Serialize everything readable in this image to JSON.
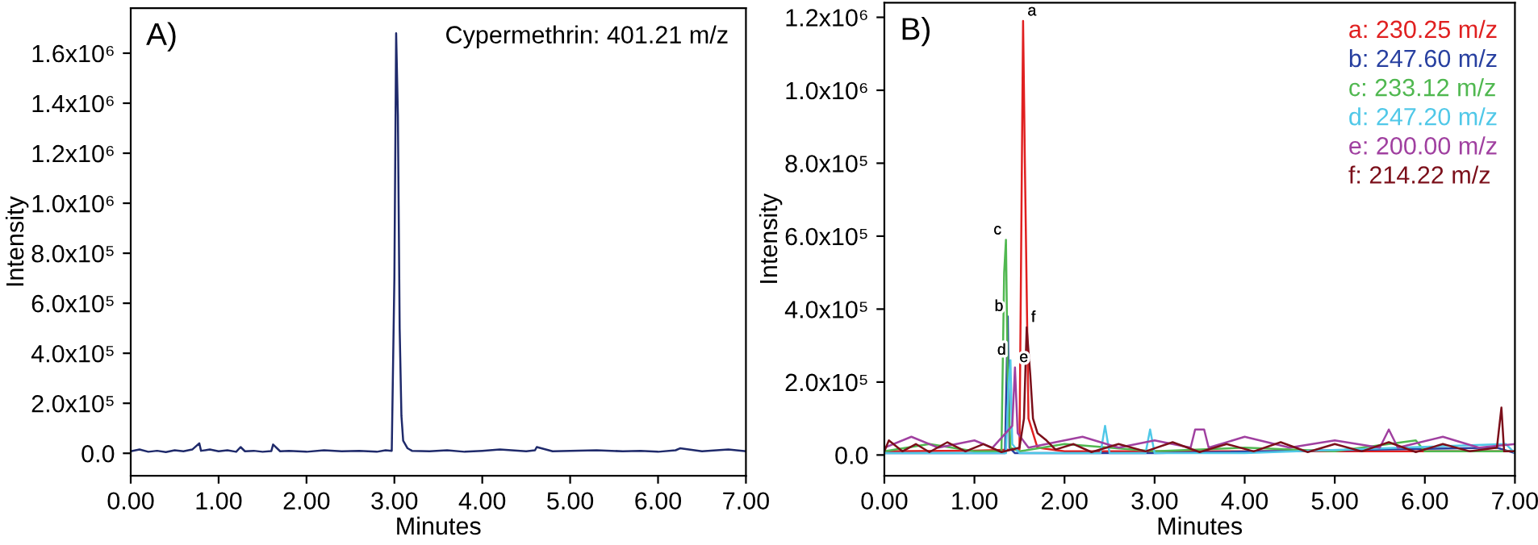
{
  "chart_data": [
    {
      "type": "line",
      "title": "A)",
      "xlabel": "Minutes",
      "ylabel": "Intensity",
      "legend": "top right",
      "grid": false,
      "marker": "none",
      "line_style": "solid",
      "xlim": [
        0,
        7
      ],
      "xticks": [
        {
          "value": 0,
          "label": "0.00"
        },
        {
          "value": 1,
          "label": "1.00"
        },
        {
          "value": 2,
          "label": "2.00"
        },
        {
          "value": 3,
          "label": "3.00"
        },
        {
          "value": 4,
          "label": "4.00"
        },
        {
          "value": 5,
          "label": "5.00"
        },
        {
          "value": 6,
          "label": "6.00"
        },
        {
          "value": 7,
          "label": "7.00"
        }
      ],
      "ylim": [
        -90000,
        1780000
      ],
      "yticks": [
        {
          "value": 0,
          "label": "0.0"
        },
        {
          "value": 200000,
          "label": "2.0x10⁵"
        },
        {
          "value": 400000,
          "label": "4.0x10⁵"
        },
        {
          "value": 600000,
          "label": "6.0x10⁵"
        },
        {
          "value": 800000,
          "label": "8.0x10⁵"
        },
        {
          "value": 1000000,
          "label": "1.0x10⁶"
        },
        {
          "value": 1200000,
          "label": "1.2x10⁶"
        },
        {
          "value": 1400000,
          "label": "1.4x10⁶"
        },
        {
          "value": 1600000,
          "label": "1.6x10⁶"
        }
      ],
      "series": [
        {
          "name": "Cypermethrin: 401.21 m/z",
          "color": "#1f2a6b",
          "x": [
            0,
            0.1,
            0.2,
            0.3,
            0.4,
            0.5,
            0.6,
            0.7,
            0.78,
            0.8,
            0.9,
            1.0,
            1.1,
            1.2,
            1.25,
            1.3,
            1.4,
            1.5,
            1.6,
            1.62,
            1.7,
            1.8,
            2.0,
            2.2,
            2.4,
            2.6,
            2.8,
            2.9,
            2.97,
            3.0,
            3.02,
            3.04,
            3.06,
            3.08,
            3.1,
            3.15,
            3.2,
            3.4,
            3.6,
            3.8,
            4.0,
            4.2,
            4.5,
            4.6,
            4.62,
            4.8,
            5.0,
            5.3,
            5.6,
            5.8,
            6.0,
            6.2,
            6.25,
            6.5,
            6.8,
            7.0
          ],
          "values": [
            8000,
            15000,
            6000,
            10000,
            5000,
            12000,
            8000,
            15000,
            40000,
            10000,
            15000,
            8000,
            12000,
            6000,
            25000,
            8000,
            10000,
            6000,
            9000,
            35000,
            8000,
            10000,
            6000,
            12000,
            8000,
            10000,
            6000,
            12000,
            10000,
            700000,
            1680000,
            1350000,
            500000,
            150000,
            50000,
            20000,
            10000,
            8000,
            12000,
            6000,
            10000,
            15000,
            8000,
            12000,
            25000,
            8000,
            10000,
            12000,
            8000,
            10000,
            6000,
            12000,
            20000,
            8000,
            15000,
            8000
          ]
        }
      ]
    },
    {
      "type": "line",
      "title": "B)",
      "xlabel": "Minutes",
      "ylabel": "Intensity",
      "legend": "top right",
      "grid": false,
      "marker": "none",
      "line_style": "solid",
      "xlim": [
        0,
        7
      ],
      "xticks": [
        {
          "value": 0,
          "label": "0.00"
        },
        {
          "value": 1,
          "label": "1.00"
        },
        {
          "value": 2,
          "label": "2.00"
        },
        {
          "value": 3,
          "label": "3.00"
        },
        {
          "value": 4,
          "label": "4.00"
        },
        {
          "value": 5,
          "label": "5.00"
        },
        {
          "value": 6,
          "label": "6.00"
        },
        {
          "value": 7,
          "label": "7.00"
        }
      ],
      "ylim": [
        -57000,
        1240000
      ],
      "yticks": [
        {
          "value": 0,
          "label": "0.0"
        },
        {
          "value": 200000,
          "label": "2.0x10⁵"
        },
        {
          "value": 400000,
          "label": "4.0x10⁵"
        },
        {
          "value": 600000,
          "label": "6.0x10⁵"
        },
        {
          "value": 800000,
          "label": "8.0x10⁵"
        },
        {
          "value": 1000000,
          "label": "1.0x10⁶"
        },
        {
          "value": 1200000,
          "label": "1.2x10⁶"
        }
      ],
      "annotations": [
        {
          "text": "a",
          "x": 1.54,
          "y": 1190000
        },
        {
          "text": "b",
          "x": 1.37,
          "y": 380000
        },
        {
          "text": "c",
          "x": 1.35,
          "y": 590000
        },
        {
          "text": "d",
          "x": 1.4,
          "y": 260000
        },
        {
          "text": "e",
          "x": 1.45,
          "y": 240000
        },
        {
          "text": "f",
          "x": 1.58,
          "y": 350000
        }
      ],
      "series": [
        {
          "name": "a: 230.25 m/z",
          "color": "#e02020",
          "x": [
            0,
            1.0,
            1.5,
            1.52,
            1.54,
            1.56,
            1.6,
            1.7,
            2.0,
            7.0
          ],
          "values": [
            10000,
            12000,
            15000,
            600000,
            1190000,
            800000,
            100000,
            20000,
            10000,
            10000
          ]
        },
        {
          "name": "b: 247.60 m/z",
          "color": "#2840a0",
          "x": [
            0,
            1.0,
            1.34,
            1.37,
            1.39,
            1.45,
            3.0,
            6.8,
            7.0
          ],
          "values": [
            5000,
            5000,
            5000,
            380000,
            20000,
            5000,
            5000,
            20000,
            5000
          ]
        },
        {
          "name": "c: 233.12 m/z",
          "color": "#50b850",
          "x": [
            0,
            0.5,
            1.0,
            1.3,
            1.33,
            1.35,
            1.37,
            1.4,
            1.5,
            2.0,
            3.0,
            4.0,
            5.0,
            5.9,
            6.0,
            7.0
          ],
          "values": [
            10000,
            30000,
            10000,
            10000,
            500000,
            590000,
            200000,
            20000,
            10000,
            30000,
            10000,
            20000,
            10000,
            40000,
            10000,
            10000
          ]
        },
        {
          "name": "d: 247.20 m/z",
          "color": "#50c8e8",
          "x": [
            0,
            1.0,
            1.35,
            1.38,
            1.4,
            1.42,
            1.5,
            2.4,
            2.45,
            2.5,
            2.9,
            2.95,
            3.0,
            4.0,
            6.9,
            7.0
          ],
          "values": [
            5000,
            5000,
            5000,
            200000,
            260000,
            30000,
            5000,
            5000,
            80000,
            5000,
            5000,
            70000,
            5000,
            5000,
            30000,
            5000
          ]
        },
        {
          "name": "e: 200.00 m/z",
          "color": "#a040a0",
          "x": [
            0,
            0.3,
            0.6,
            1.0,
            1.2,
            1.42,
            1.45,
            1.48,
            1.6,
            2.2,
            2.6,
            3.0,
            3.4,
            3.45,
            3.55,
            3.6,
            4.0,
            4.5,
            5.0,
            5.5,
            5.6,
            5.7,
            6.2,
            6.6,
            7.0
          ],
          "values": [
            20000,
            50000,
            20000,
            40000,
            20000,
            80000,
            240000,
            60000,
            20000,
            50000,
            20000,
            40000,
            20000,
            70000,
            70000,
            20000,
            50000,
            20000,
            40000,
            20000,
            70000,
            20000,
            50000,
            20000,
            30000
          ]
        },
        {
          "name": "f: 214.22 m/z",
          "color": "#7b0f1a",
          "x": [
            0,
            0.05,
            0.2,
            0.35,
            0.5,
            0.7,
            0.9,
            1.1,
            1.3,
            1.5,
            1.55,
            1.58,
            1.62,
            1.65,
            1.7,
            1.8,
            1.9,
            2.1,
            2.3,
            2.6,
            2.9,
            3.2,
            3.5,
            3.8,
            4.1,
            4.4,
            4.7,
            5.0,
            5.3,
            5.6,
            5.9,
            6.2,
            6.5,
            6.8,
            6.85,
            6.88,
            7.0
          ],
          "values": [
            10000,
            40000,
            10000,
            30000,
            8000,
            35000,
            10000,
            30000,
            8000,
            20000,
            100000,
            350000,
            220000,
            100000,
            60000,
            40000,
            15000,
            30000,
            8000,
            30000,
            10000,
            35000,
            8000,
            30000,
            10000,
            35000,
            8000,
            30000,
            10000,
            35000,
            8000,
            30000,
            10000,
            20000,
            130000,
            10000,
            10000
          ]
        }
      ]
    }
  ]
}
